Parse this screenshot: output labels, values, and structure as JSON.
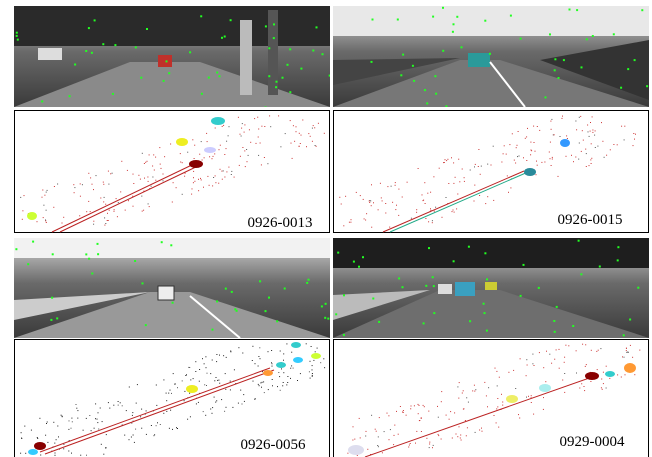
{
  "panels": [
    {
      "label": "0926-0013"
    },
    {
      "label": "0926-0015"
    },
    {
      "label": "0926-0056"
    },
    {
      "label": "0929-0004"
    }
  ]
}
